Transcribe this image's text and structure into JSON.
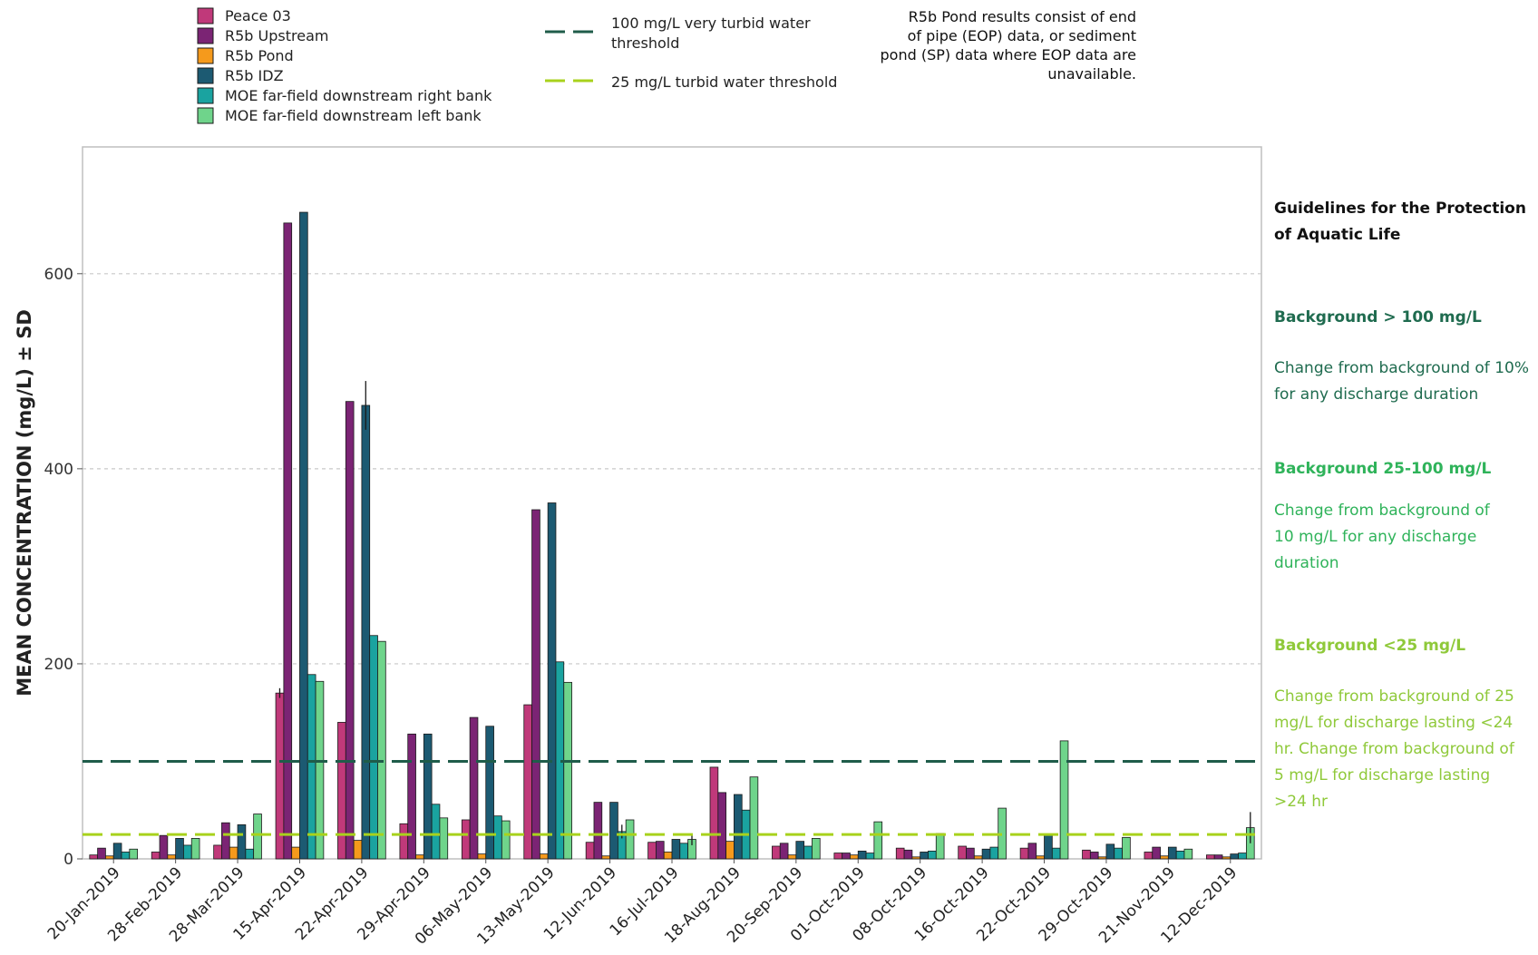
{
  "colors": {
    "peace03": "#c0397a",
    "r5b_upstream": "#7b2474",
    "r5b_pond": "#f59a1c",
    "r5b_idz": "#1c5a72",
    "moe_right": "#1aa3a0",
    "moe_left": "#6fd48b",
    "threshold100": "#1f5c4a",
    "threshold25": "#a8d21c",
    "grid": "#c8c8c8",
    "guide_dark": "#1f6b4f",
    "guide_mid": "#2fb35a",
    "guide_light": "#8fc93a"
  },
  "chart_data": {
    "type": "bar",
    "ylabel": "MEAN CONCENTRATION (mg/L) ± SD",
    "ylim": [
      0,
      730
    ],
    "yticks": [
      0,
      200,
      400,
      600
    ],
    "grid": "horizontal dashed",
    "legend_placement": "top-left, above plot",
    "categories": [
      "20-Jan-2019",
      "28-Feb-2019",
      "28-Mar-2019",
      "15-Apr-2019",
      "22-Apr-2019",
      "29-Apr-2019",
      "06-May-2019",
      "13-May-2019",
      "12-Jun-2019",
      "16-Jul-2019",
      "18-Aug-2019",
      "20-Sep-2019",
      "01-Oct-2019",
      "08-Oct-2019",
      "16-Oct-2019",
      "22-Oct-2019",
      "29-Oct-2019",
      "21-Nov-2019",
      "12-Dec-2019"
    ],
    "series": [
      {
        "name": "Peace 03",
        "color_key": "peace03",
        "values": [
          4,
          7,
          14,
          170,
          140,
          36,
          40,
          158,
          17,
          17,
          94,
          13,
          6,
          11,
          13,
          11,
          9,
          7,
          4
        ]
      },
      {
        "name": "R5b Upstream",
        "color_key": "r5b_upstream",
        "values": [
          11,
          24,
          37,
          652,
          469,
          128,
          145,
          358,
          58,
          18,
          68,
          16,
          6,
          9,
          11,
          16,
          7,
          12,
          4
        ]
      },
      {
        "name": "R5b Pond",
        "color_key": "r5b_pond",
        "values": [
          3,
          4,
          12,
          12,
          19,
          4,
          5,
          5,
          3,
          7,
          18,
          4,
          4,
          2,
          3,
          3,
          2,
          3,
          2
        ]
      },
      {
        "name": "R5b IDZ",
        "color_key": "r5b_idz",
        "values": [
          16,
          21,
          35,
          663,
          465,
          128,
          136,
          365,
          58,
          20,
          66,
          18,
          8,
          7,
          10,
          25,
          15,
          12,
          5
        ]
      },
      {
        "name": "MOE far-field downstream right bank",
        "color_key": "moe_right",
        "values": [
          7,
          14,
          10,
          189,
          229,
          56,
          44,
          202,
          28,
          16,
          50,
          13,
          6,
          8,
          12,
          11,
          11,
          8,
          6
        ]
      },
      {
        "name": "MOE far-field downstream left bank",
        "color_key": "moe_left",
        "values": [
          10,
          21,
          46,
          182,
          223,
          42,
          39,
          181,
          40,
          20,
          84,
          21,
          38,
          26,
          52,
          121,
          22,
          10,
          32
        ]
      }
    ],
    "error_bars": [
      {
        "series": 0,
        "category": 3,
        "sd": 5
      },
      {
        "series": 3,
        "category": 4,
        "sd": 25
      },
      {
        "series": 4,
        "category": 8,
        "sd": 7
      },
      {
        "series": 5,
        "category": 9,
        "sd": 6
      },
      {
        "series": 5,
        "category": 18,
        "sd": 16
      }
    ],
    "reference_lines": [
      {
        "value": 100,
        "label": "100 mg/L very turbid water threshold",
        "color_key": "threshold100"
      },
      {
        "value": 25,
        "label": "25 mg/L turbid water threshold",
        "color_key": "threshold25"
      }
    ]
  },
  "legend_lines": {
    "line100": [
      "100 mg/L very turbid water",
      "threshold"
    ],
    "line25": [
      "25 mg/L turbid water threshold"
    ]
  },
  "note": {
    "lines": [
      "R5b Pond results consist of end",
      "of pipe (EOP) data, or sediment",
      "pond (SP) data where EOP data are",
      "unavailable."
    ]
  },
  "guidelines": {
    "title_line1": "Guidelines for the Protection",
    "title_line2": "of Aquatic Life",
    "bg_high_heading": "Background > 100 mg/L",
    "bg_high_line1": "Change from background of 10%",
    "bg_high_line2": "for any discharge duration",
    "bg_mid_heading": "Background 25-100 mg/L",
    "bg_mid_line1": "Change from background of",
    "bg_mid_line2": "10 mg/L for any discharge",
    "bg_mid_line3": "duration",
    "bg_low_heading": "Background <25 mg/L",
    "bg_low_line1": "Change from background of 25",
    "bg_low_line2": "mg/L for discharge lasting <24",
    "bg_low_line3": "hr. Change from background of",
    "bg_low_line4": "5 mg/L for discharge lasting",
    "bg_low_line5": ">24 hr"
  }
}
